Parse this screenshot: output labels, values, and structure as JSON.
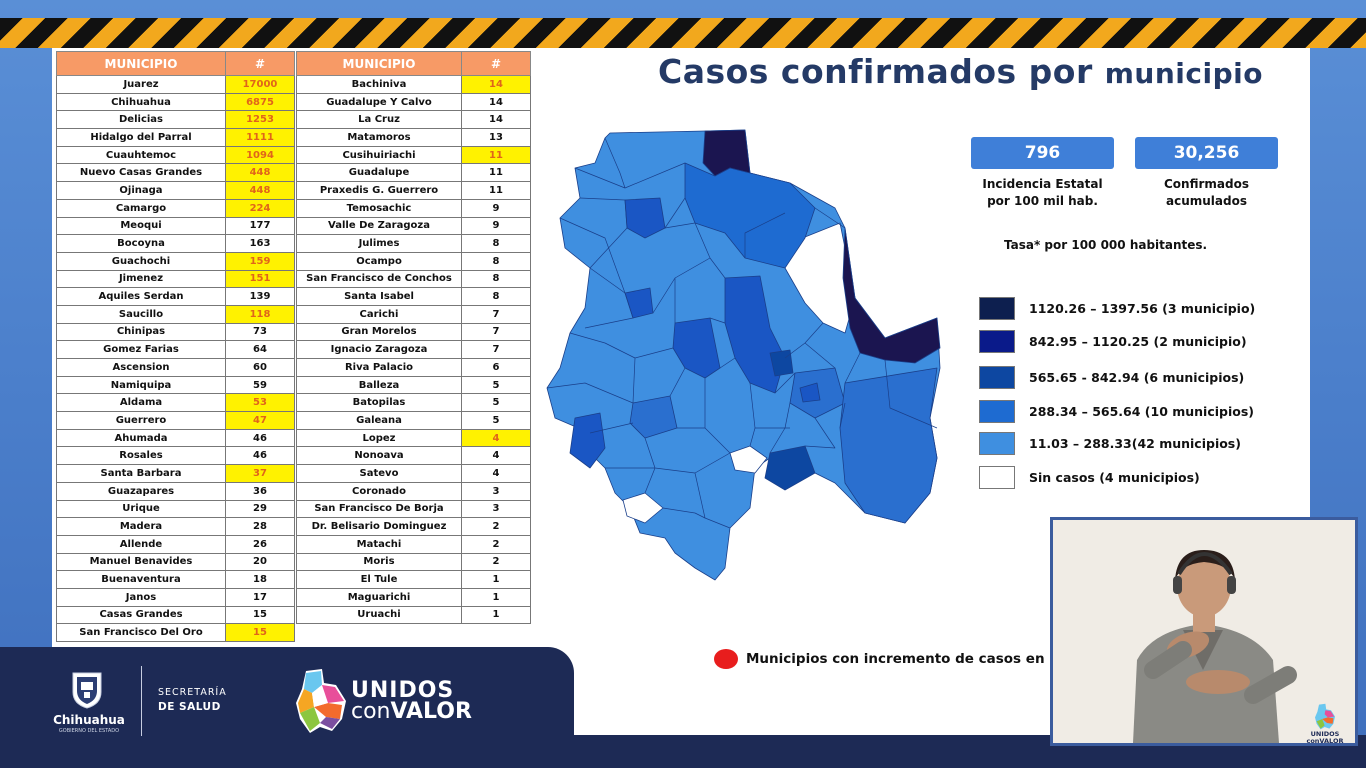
{
  "title": {
    "main": "Casos confirmados por",
    "small": "municipio"
  },
  "table_headers": {
    "municipio": "MUNICIPIO",
    "count": "#"
  },
  "table_left": [
    {
      "name": "Juarez",
      "value": "17000",
      "highlight": true
    },
    {
      "name": "Chihuahua",
      "value": "6875",
      "highlight": true
    },
    {
      "name": "Delicias",
      "value": "1253",
      "highlight": true
    },
    {
      "name": "Hidalgo del Parral",
      "value": "1111",
      "highlight": true
    },
    {
      "name": "Cuauhtemoc",
      "value": "1094",
      "highlight": true
    },
    {
      "name": "Nuevo Casas Grandes",
      "value": "448",
      "highlight": true
    },
    {
      "name": "Ojinaga",
      "value": "448",
      "highlight": true
    },
    {
      "name": "Camargo",
      "value": "224",
      "highlight": true
    },
    {
      "name": "Meoqui",
      "value": "177",
      "highlight": false
    },
    {
      "name": "Bocoyna",
      "value": "163",
      "highlight": false
    },
    {
      "name": "Guachochi",
      "value": "159",
      "highlight": true
    },
    {
      "name": "Jimenez",
      "value": "151",
      "highlight": true
    },
    {
      "name": "Aquiles Serdan",
      "value": "139",
      "highlight": false
    },
    {
      "name": "Saucillo",
      "value": "118",
      "highlight": true
    },
    {
      "name": "Chinipas",
      "value": "73",
      "highlight": false
    },
    {
      "name": "Gomez Farias",
      "value": "64",
      "highlight": false
    },
    {
      "name": "Ascension",
      "value": "60",
      "highlight": false
    },
    {
      "name": "Namiquipa",
      "value": "59",
      "highlight": false
    },
    {
      "name": "Aldama",
      "value": "53",
      "highlight": true
    },
    {
      "name": "Guerrero",
      "value": "47",
      "highlight": true
    },
    {
      "name": "Ahumada",
      "value": "46",
      "highlight": false
    },
    {
      "name": "Rosales",
      "value": "46",
      "highlight": false
    },
    {
      "name": "Santa Barbara",
      "value": "37",
      "highlight": true
    },
    {
      "name": "Guazapares",
      "value": "36",
      "highlight": false
    },
    {
      "name": "Urique",
      "value": "29",
      "highlight": false
    },
    {
      "name": "Madera",
      "value": "28",
      "highlight": false
    },
    {
      "name": "Allende",
      "value": "26",
      "highlight": false
    },
    {
      "name": "Manuel Benavides",
      "value": "20",
      "highlight": false
    },
    {
      "name": "Buenaventura",
      "value": "18",
      "highlight": false
    },
    {
      "name": "Janos",
      "value": "17",
      "highlight": false
    },
    {
      "name": "Casas Grandes",
      "value": "15",
      "highlight": false
    },
    {
      "name": "San Francisco Del Oro",
      "value": "15",
      "highlight": true
    }
  ],
  "table_right": [
    {
      "name": "Bachiniva",
      "value": "14",
      "highlight": true
    },
    {
      "name": "Guadalupe Y Calvo",
      "value": "14",
      "highlight": false
    },
    {
      "name": "La Cruz",
      "value": "14",
      "highlight": false
    },
    {
      "name": "Matamoros",
      "value": "13",
      "highlight": false
    },
    {
      "name": "Cusihuiriachi",
      "value": "11",
      "highlight": true
    },
    {
      "name": "Guadalupe",
      "value": "11",
      "highlight": false
    },
    {
      "name": "Praxedis G. Guerrero",
      "value": "11",
      "highlight": false
    },
    {
      "name": "Temosachic",
      "value": "9",
      "highlight": false
    },
    {
      "name": "Valle De Zaragoza",
      "value": "9",
      "highlight": false
    },
    {
      "name": "Julimes",
      "value": "8",
      "highlight": false
    },
    {
      "name": "Ocampo",
      "value": "8",
      "highlight": false
    },
    {
      "name": "San Francisco de Conchos",
      "value": "8",
      "highlight": false
    },
    {
      "name": "Santa Isabel",
      "value": "8",
      "highlight": false
    },
    {
      "name": "Carichi",
      "value": "7",
      "highlight": false
    },
    {
      "name": "Gran Morelos",
      "value": "7",
      "highlight": false
    },
    {
      "name": "Ignacio Zaragoza",
      "value": "7",
      "highlight": false
    },
    {
      "name": "Riva Palacio",
      "value": "6",
      "highlight": false
    },
    {
      "name": "Balleza",
      "value": "5",
      "highlight": false
    },
    {
      "name": "Batopilas",
      "value": "5",
      "highlight": false
    },
    {
      "name": "Galeana",
      "value": "5",
      "highlight": false
    },
    {
      "name": "Lopez",
      "value": "4",
      "highlight": true
    },
    {
      "name": "Nonoava",
      "value": "4",
      "highlight": false
    },
    {
      "name": "Satevo",
      "value": "4",
      "highlight": false
    },
    {
      "name": "Coronado",
      "value": "3",
      "highlight": false
    },
    {
      "name": "San Francisco De Borja",
      "value": "3",
      "highlight": false
    },
    {
      "name": "Dr. Belisario Dominguez",
      "value": "2",
      "highlight": false
    },
    {
      "name": "Matachi",
      "value": "2",
      "highlight": false
    },
    {
      "name": "Moris",
      "value": "2",
      "highlight": false
    },
    {
      "name": "El Tule",
      "value": "1",
      "highlight": false
    },
    {
      "name": "Maguarichi",
      "value": "1",
      "highlight": false
    },
    {
      "name": "Uruachi",
      "value": "1",
      "highlight": false
    }
  ],
  "stats": [
    {
      "value": "796",
      "caption1": "Incidencia Estatal",
      "caption2": "por 100 mil hab."
    },
    {
      "value": "30,256",
      "caption1": "Confirmados",
      "caption2": "acumulados"
    }
  ],
  "tasa_label": "Tasa* por 100 000 habitantes.",
  "legend": [
    {
      "label": "1120.26 – 1397.56 (3 municipio)",
      "color": "#0d1f4f"
    },
    {
      "label": "842.95 – 1120.25 (2 municipio)",
      "color": "#0a1a8a"
    },
    {
      "label": "565.65  -  842.94 (6 municipios)",
      "color": "#0d47a1"
    },
    {
      "label": "288.34 – 565.64 (10 municipios)",
      "color": "#1e6bd1"
    },
    {
      "label": " 11.03 – 288.33(42  municipios)",
      "color": "#3f8fe0"
    },
    {
      "label": "Sin casos (4 municipios)",
      "color": "#ffffff"
    }
  ],
  "increment_note": "Municipios con incremento de casos en la",
  "footer": {
    "chihuahua": "Chihuahua",
    "gobierno": "GOBIERNO DEL ESTADO",
    "secretaria": "SECRETARÍA",
    "de_salud": "DE SALUD",
    "unidos": "UNIDOS",
    "con": "con",
    "valor": "VALOR"
  },
  "video_logo": {
    "line1": "UNIDOS",
    "line2": "conVALOR"
  },
  "colors": {
    "accent": "#f2a81d",
    "header": "#f79a66",
    "highlight": "#fff200",
    "navy": "#1d2a55"
  }
}
